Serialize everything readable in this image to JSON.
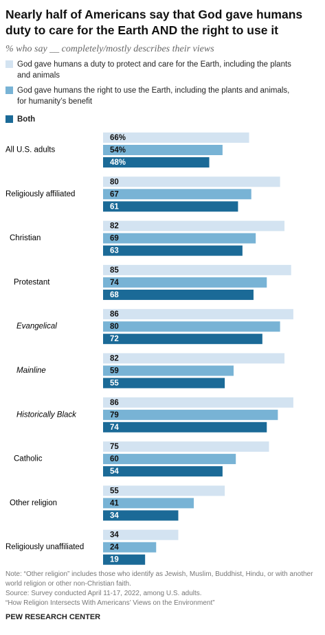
{
  "chart_data": {
    "type": "bar",
    "orientation": "horizontal",
    "title": "Nearly half of Americans say that God gave humans duty to care for the Earth AND the right to use it",
    "subtitle": "% who say __ completely/mostly describes their views",
    "categories": [
      "All U.S. adults",
      "Religiously affiliated",
      "Christian",
      "Protestant",
      "Evangelical",
      "Mainline",
      "Historically Black",
      "Catholic",
      "Other religion",
      "Religiously unaffiliated"
    ],
    "series": [
      {
        "name": "God gave humans a duty to protect and care for the Earth, including the plants and animals",
        "color": "#d3e3f1",
        "values": [
          66,
          80,
          82,
          85,
          86,
          82,
          86,
          75,
          55,
          34
        ],
        "value_labels": [
          "66%",
          "80",
          "82",
          "85",
          "86",
          "82",
          "86",
          "75",
          "55",
          "34"
        ]
      },
      {
        "name": "God gave humans the right to use the Earth, including the plants and animals, for humanity’s benefit",
        "color": "#78b3d5",
        "values": [
          54,
          67,
          69,
          74,
          80,
          59,
          79,
          60,
          41,
          24
        ],
        "value_labels": [
          "54%",
          "67",
          "69",
          "74",
          "80",
          "59",
          "79",
          "60",
          "41",
          "24"
        ]
      },
      {
        "name": "Both",
        "color": "#1b6a97",
        "values": [
          48,
          61,
          63,
          68,
          72,
          55,
          74,
          54,
          34,
          19
        ],
        "value_labels": [
          "48%",
          "61",
          "63",
          "68",
          "72",
          "55",
          "74",
          "54",
          "34",
          "19"
        ]
      }
    ],
    "xlim": [
      0,
      100
    ],
    "note": "Note: “Other religion” includes those who identify as Jewish, Muslim, Buddhist, Hindu, or with another world religion or other non-Christian faith.",
    "source": "Source: Survey conducted April 11-17, 2022, among U.S. adults.",
    "report": "“How Religion Intersects With Americans’ Views on the Environment”",
    "footer": "PEW RESEARCH CENTER"
  }
}
